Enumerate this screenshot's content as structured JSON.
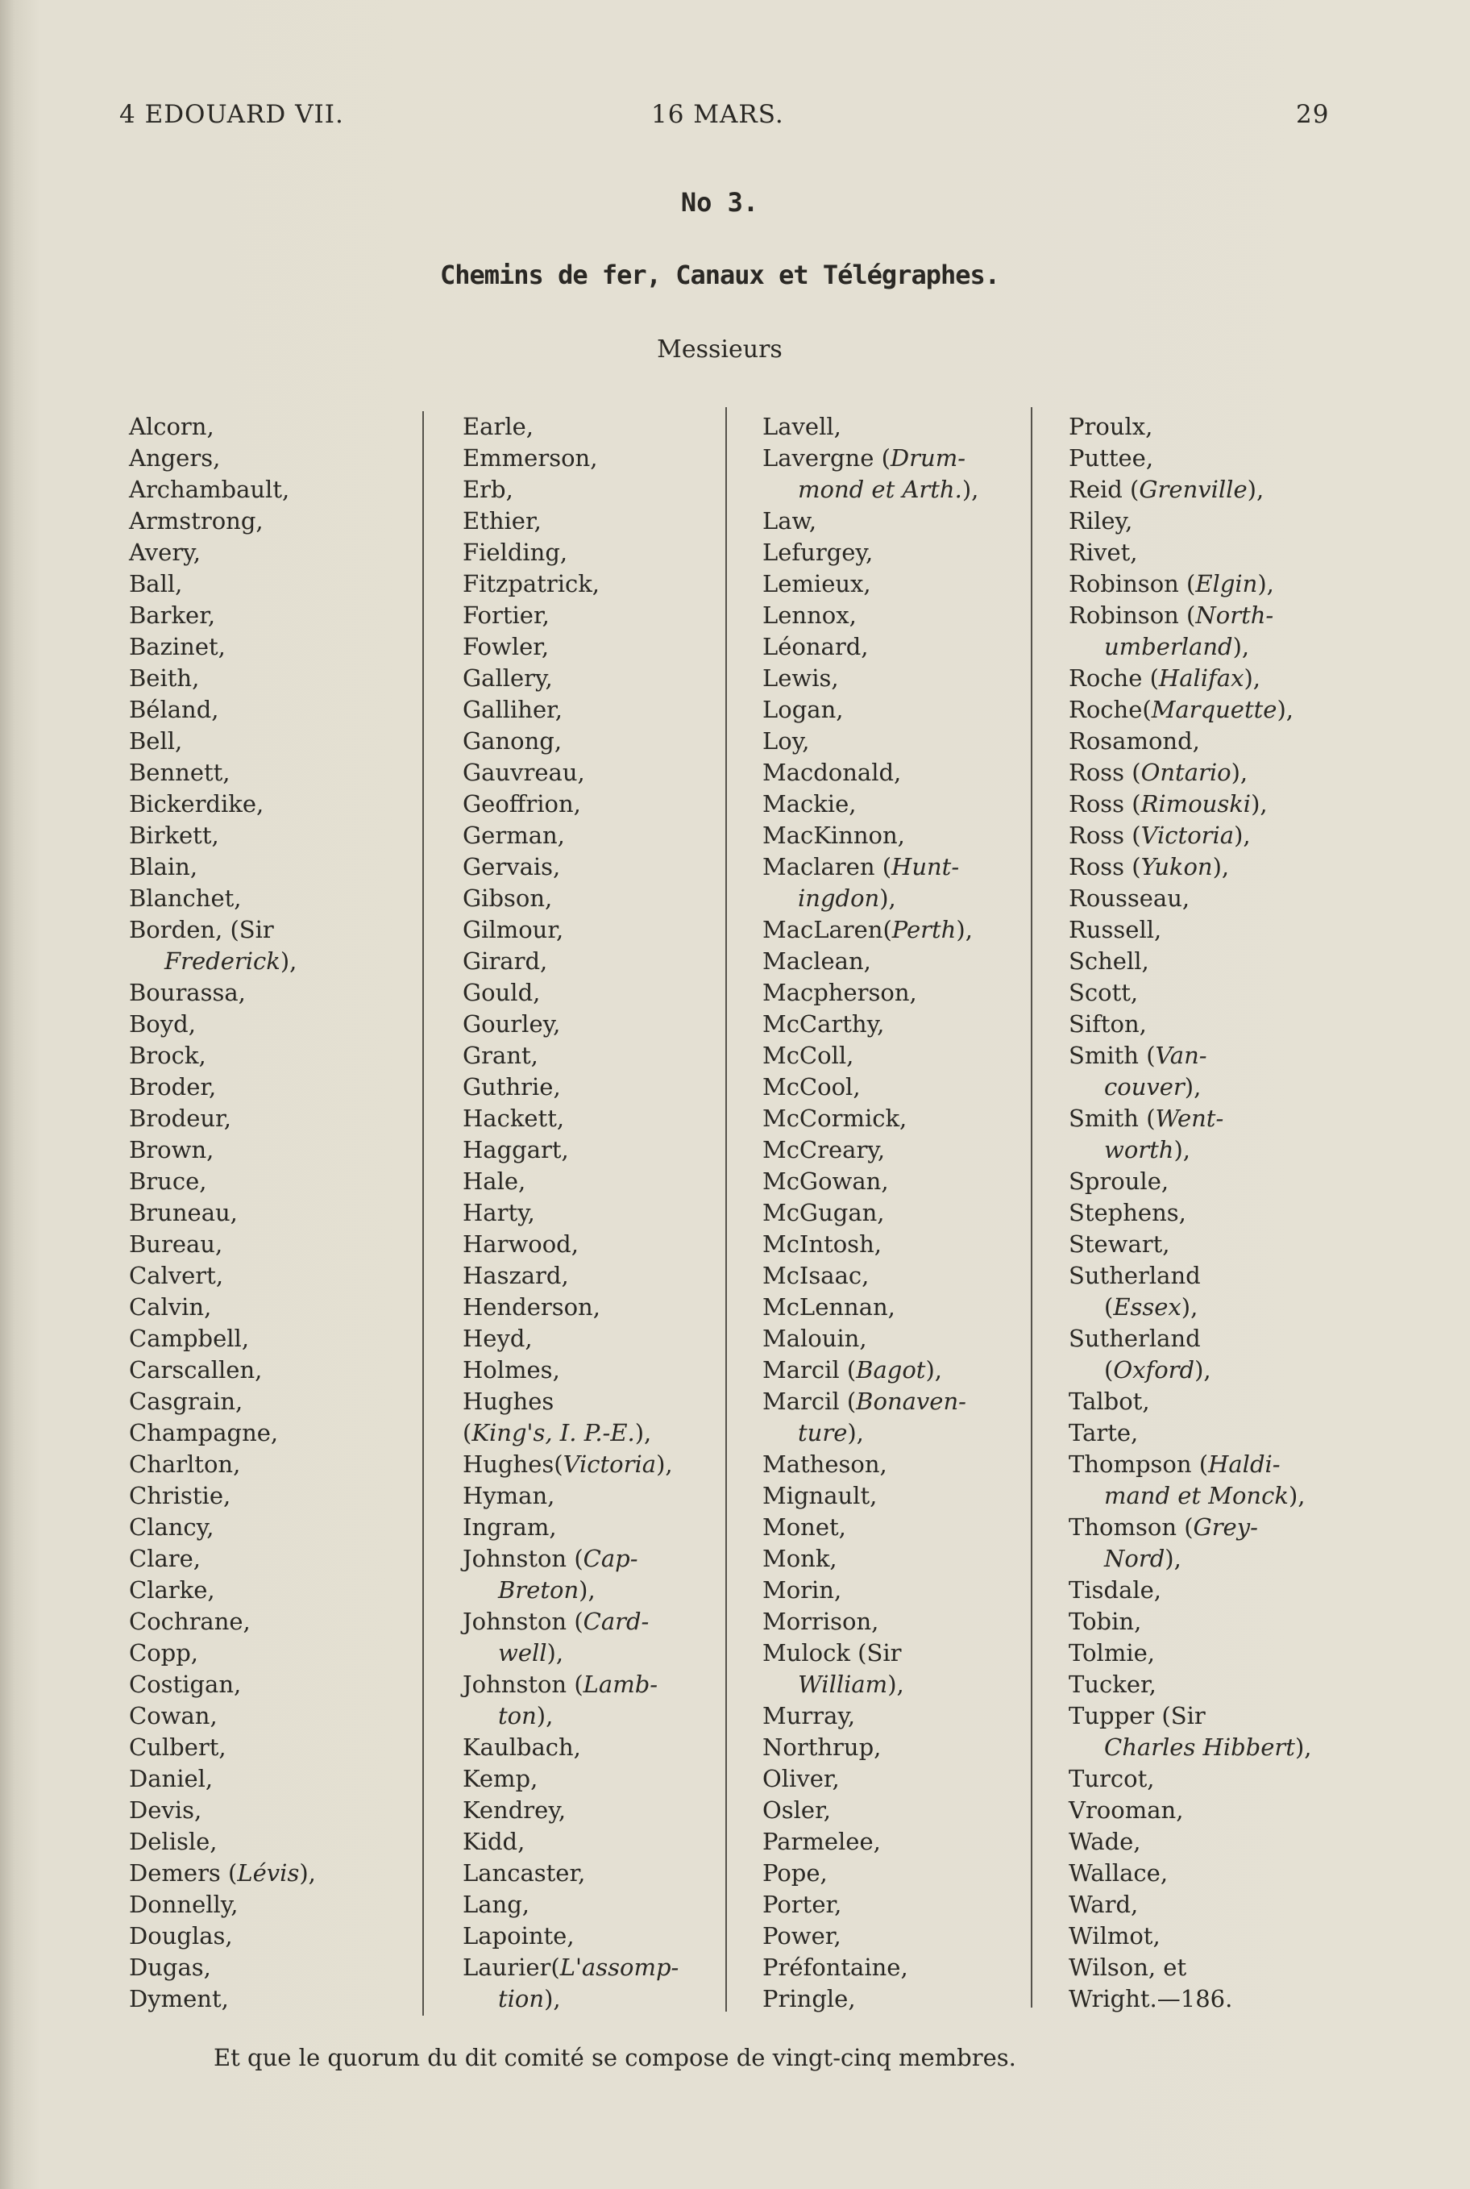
{
  "header": {
    "left": "4 EDOUARD VII.",
    "center": "16 MARS.",
    "page_number": "29"
  },
  "number": "No 3.",
  "title": "Chemins de fer, Canaux et Télégraphes.",
  "salutation": "Messieurs",
  "columns": [
    [
      {
        "r": "Alcorn,"
      },
      {
        "r": "Angers,"
      },
      {
        "r": "Archambault,"
      },
      {
        "r": "Armstrong,"
      },
      {
        "r": "Avery,"
      },
      {
        "r": "Ball,"
      },
      {
        "r": "Barker,"
      },
      {
        "r": "Bazinet,"
      },
      {
        "r": "Beith,"
      },
      {
        "r": "Béland,"
      },
      {
        "r": "Bell,"
      },
      {
        "r": "Bennett,"
      },
      {
        "r": "Bickerdike,"
      },
      {
        "r": "Birkett,"
      },
      {
        "r": "Blain,"
      },
      {
        "r": "Blanchet,"
      },
      {
        "r": "Borden, (Sir"
      },
      {
        "cont": true,
        "i": "Frederick",
        "t": "),"
      },
      {
        "r": "Bourassa,"
      },
      {
        "r": "Boyd,"
      },
      {
        "r": "Brock,"
      },
      {
        "r": "Broder,"
      },
      {
        "r": "Brodeur,"
      },
      {
        "r": "Brown,"
      },
      {
        "r": "Bruce,"
      },
      {
        "r": "Bruneau,"
      },
      {
        "r": "Bureau,"
      },
      {
        "r": "Calvert,"
      },
      {
        "r": "Calvin,"
      },
      {
        "r": "Campbell,"
      },
      {
        "r": "Carscallen,"
      },
      {
        "r": "Casgrain,"
      },
      {
        "r": "Champagne,"
      },
      {
        "r": "Charlton,"
      },
      {
        "r": "Christie,"
      },
      {
        "r": "Clancy,"
      },
      {
        "r": "Clare,"
      },
      {
        "r": "Clarke,"
      },
      {
        "r": "Cochrane,"
      },
      {
        "r": "Copp,"
      },
      {
        "r": "Costigan,"
      },
      {
        "r": "Cowan,"
      },
      {
        "r": "Culbert,"
      },
      {
        "r": "Daniel,"
      },
      {
        "r": "Devis,"
      },
      {
        "r": "Delisle,"
      },
      {
        "r": "Demers (",
        "i": "Lévis",
        "t": "),"
      },
      {
        "r": "Donnelly,"
      },
      {
        "r": "Douglas,"
      },
      {
        "r": "Dugas,"
      },
      {
        "r": "Dyment,"
      }
    ],
    [
      {
        "r": "Earle,"
      },
      {
        "r": "Emmerson,"
      },
      {
        "r": "Erb,"
      },
      {
        "r": "Ethier,"
      },
      {
        "r": "Fielding,"
      },
      {
        "r": "Fitzpatrick,"
      },
      {
        "r": "Fortier,"
      },
      {
        "r": "Fowler,"
      },
      {
        "r": "Gallery,"
      },
      {
        "r": "Galliher,"
      },
      {
        "r": "Ganong,"
      },
      {
        "r": "Gauvreau,"
      },
      {
        "r": "Geoffrion,"
      },
      {
        "r": "German,"
      },
      {
        "r": "Gervais,"
      },
      {
        "r": "Gibson,"
      },
      {
        "r": "Gilmour,"
      },
      {
        "r": "Girard,"
      },
      {
        "r": "Gould,"
      },
      {
        "r": "Gourley,"
      },
      {
        "r": "Grant,"
      },
      {
        "r": "Guthrie,"
      },
      {
        "r": "Hackett,"
      },
      {
        "r": "Haggart,"
      },
      {
        "r": "Hale,"
      },
      {
        "r": "Harty,"
      },
      {
        "r": "Harwood,"
      },
      {
        "r": "Haszard,"
      },
      {
        "r": "Henderson,"
      },
      {
        "r": "Heyd,"
      },
      {
        "r": "Holmes,"
      },
      {
        "r": "Hughes"
      },
      {
        "r": "(",
        "i": "King's, I. P.-E.",
        "t": "),"
      },
      {
        "r": "Hughes(",
        "i": "Victoria",
        "t": "),"
      },
      {
        "r": "Hyman,"
      },
      {
        "r": "Ingram,"
      },
      {
        "r": "Johnston (",
        "i": "Cap-"
      },
      {
        "cont": true,
        "i": "Breton",
        "t": "),"
      },
      {
        "r": "Johnston (",
        "i": "Card-"
      },
      {
        "cont": true,
        "i": "well",
        "t": "),"
      },
      {
        "r": "Johnston (",
        "i": "Lamb-"
      },
      {
        "cont": true,
        "i": "ton",
        "t": "),"
      },
      {
        "r": "Kaulbach,"
      },
      {
        "r": "Kemp,"
      },
      {
        "r": "Kendrey,"
      },
      {
        "r": "Kidd,"
      },
      {
        "r": "Lancaster,"
      },
      {
        "r": "Lang,"
      },
      {
        "r": "Lapointe,"
      },
      {
        "r": "Laurier(",
        "i": "L'assomp-"
      },
      {
        "cont": true,
        "i": "tion",
        "t": "),"
      }
    ],
    [
      {
        "r": "Lavell,"
      },
      {
        "r": "Lavergne (",
        "i": "Drum-"
      },
      {
        "cont": true,
        "i": "mond et Arth.",
        "t": "),"
      },
      {
        "r": "Law,"
      },
      {
        "r": "Lefurgey,"
      },
      {
        "r": "Lemieux,"
      },
      {
        "r": "Lennox,"
      },
      {
        "r": "Léonard,"
      },
      {
        "r": "Lewis,"
      },
      {
        "r": "Logan,"
      },
      {
        "r": "Loy,"
      },
      {
        "r": "Macdonald,"
      },
      {
        "r": "Mackie,"
      },
      {
        "r": "MacKinnon,"
      },
      {
        "r": "Maclaren (",
        "i": "Hunt-"
      },
      {
        "cont": true,
        "i": "ingdon",
        "t": "),"
      },
      {
        "r": "MacLaren(",
        "i": "Perth",
        "t": "),"
      },
      {
        "r": "Maclean,"
      },
      {
        "r": "Macpherson,"
      },
      {
        "r": "McCarthy,"
      },
      {
        "r": "McColl,"
      },
      {
        "r": "McCool,"
      },
      {
        "r": "McCormick,"
      },
      {
        "r": "McCreary,"
      },
      {
        "r": "McGowan,"
      },
      {
        "r": "McGugan,"
      },
      {
        "r": "McIntosh,"
      },
      {
        "r": "McIsaac,"
      },
      {
        "r": "McLennan,"
      },
      {
        "r": "Malouin,"
      },
      {
        "r": "Marcil (",
        "i": "Bagot",
        "t": "),"
      },
      {
        "r": "Marcil (",
        "i": "Bonaven-"
      },
      {
        "cont": true,
        "i": "ture",
        "t": "),"
      },
      {
        "r": "Matheson,"
      },
      {
        "r": "Mignault,"
      },
      {
        "r": "Monet,"
      },
      {
        "r": "Monk,"
      },
      {
        "r": "Morin,"
      },
      {
        "r": "Morrison,"
      },
      {
        "r": "Mulock (Sir"
      },
      {
        "cont": true,
        "i": "William",
        "t": "),"
      },
      {
        "r": "Murray,"
      },
      {
        "r": "Northrup,"
      },
      {
        "r": "Oliver,"
      },
      {
        "r": "Osler,"
      },
      {
        "r": "Parmelee,"
      },
      {
        "r": "Pope,"
      },
      {
        "r": "Porter,"
      },
      {
        "r": "Power,"
      },
      {
        "r": "Préfontaine,"
      },
      {
        "r": "Pringle,"
      }
    ],
    [
      {
        "r": "Proulx,"
      },
      {
        "r": "Puttee,"
      },
      {
        "r": "Reid (",
        "i": "Grenville",
        "t": "),"
      },
      {
        "r": "Riley,"
      },
      {
        "r": "Rivet,"
      },
      {
        "r": "Robinson (",
        "i": "Elgin",
        "t": "),"
      },
      {
        "r": "Robinson (",
        "i": "North-"
      },
      {
        "cont": true,
        "i": "umberland",
        "t": "),"
      },
      {
        "r": "Roche (",
        "i": "Halifax",
        "t": "),"
      },
      {
        "r": "Roche(",
        "i": "Marquette",
        "t": "),"
      },
      {
        "r": "Rosamond,"
      },
      {
        "r": "Ross (",
        "i": "Ontario",
        "t": "),"
      },
      {
        "r": "Ross (",
        "i": "Rimouski",
        "t": "),"
      },
      {
        "r": "Ross (",
        "i": "Victoria",
        "t": "),"
      },
      {
        "r": "Ross (",
        "i": "Yukon",
        "t": "),"
      },
      {
        "r": "Rousseau,"
      },
      {
        "r": "Russell,"
      },
      {
        "r": "Schell,"
      },
      {
        "r": "Scott,"
      },
      {
        "r": "Sifton,"
      },
      {
        "r": "Smith (",
        "i": "Van-"
      },
      {
        "cont": true,
        "i": "couver",
        "t": "),"
      },
      {
        "r": "Smith (",
        "i": "Went-"
      },
      {
        "cont": true,
        "i": "worth",
        "t": "),"
      },
      {
        "r": "Sproule,"
      },
      {
        "r": "Stephens,"
      },
      {
        "r": "Stewart,"
      },
      {
        "r": "Sutherland"
      },
      {
        "cont": true,
        "r": "(",
        "i": "Essex",
        "t": "),"
      },
      {
        "r": "Sutherland"
      },
      {
        "cont": true,
        "r": "(",
        "i": "Oxford",
        "t": "),"
      },
      {
        "r": "Talbot,"
      },
      {
        "r": "Tarte,"
      },
      {
        "r": "Thompson (",
        "i": "Haldi-"
      },
      {
        "cont": true,
        "i": "mand et Monck",
        "t": "),"
      },
      {
        "r": "Thomson (",
        "i": "Grey-"
      },
      {
        "cont": true,
        "i": "Nord",
        "t": "),"
      },
      {
        "r": "Tisdale,"
      },
      {
        "r": "Tobin,"
      },
      {
        "r": "Tolmie,"
      },
      {
        "r": "Tucker,"
      },
      {
        "r": "Tupper (Sir"
      },
      {
        "cont": true,
        "i": "Charles Hibbert",
        "t": "),"
      },
      {
        "r": "Turcot,"
      },
      {
        "r": "Vrooman,"
      },
      {
        "r": "Wade,"
      },
      {
        "r": "Wallace,"
      },
      {
        "r": "Ward,"
      },
      {
        "r": "Wilmot,"
      },
      {
        "r": "Wilson, et"
      },
      {
        "r": "Wright.—186."
      }
    ]
  ],
  "footer": "Et que le quorum du dit comité se compose de vingt-cinq membres."
}
